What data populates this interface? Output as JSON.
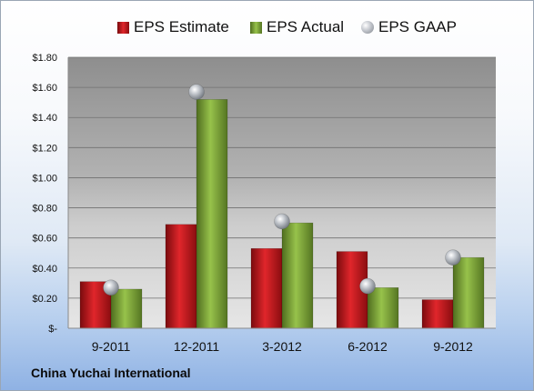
{
  "company": "China Yuchai International",
  "chart_data": {
    "type": "bar",
    "categories": [
      "9-2011",
      "12-2011",
      "3-2012",
      "6-2012",
      "9-2012"
    ],
    "series": [
      {
        "name": "EPS Estimate",
        "kind": "bar",
        "color": "#c0181c",
        "values": [
          0.31,
          0.69,
          0.53,
          0.51,
          0.19
        ]
      },
      {
        "name": "EPS Actual",
        "kind": "bar",
        "color": "#7fa63a",
        "values": [
          0.26,
          1.52,
          0.7,
          0.27,
          0.47
        ]
      },
      {
        "name": "EPS GAAP",
        "kind": "marker",
        "color": "#a9adb4",
        "values": [
          0.27,
          1.57,
          0.71,
          0.28,
          0.47
        ]
      }
    ],
    "yticks": [
      "$-",
      "$0.20",
      "$0.40",
      "$0.60",
      "$0.80",
      "$1.00",
      "$1.20",
      "$1.40",
      "$1.60",
      "$1.80"
    ],
    "ylim": [
      0,
      1.8
    ],
    "grid": true,
    "legend_position": "top"
  }
}
